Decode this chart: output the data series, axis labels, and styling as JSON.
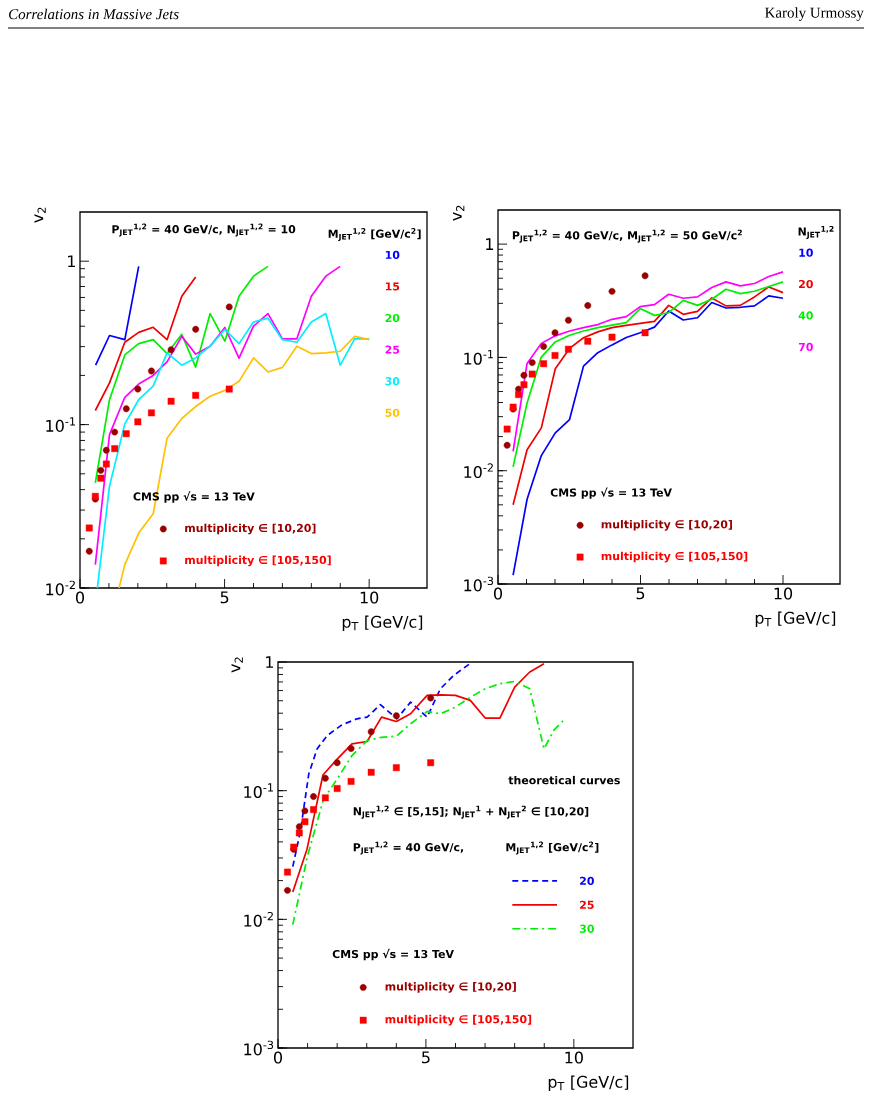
{
  "chart_data": [
    {
      "type": "line",
      "title": "P$_{JET}$$^{1,2}$ = 40 GeV/c, N$_{JET}$$^{1,2}$ = 10",
      "xlabel": "p$_{T}$ [GeV/c]",
      "ylabel": "v$_{2}$",
      "legend_title": "M$_{JET}$$^{1,2}$ [GeV/c$^{2}$]",
      "log": "y",
      "xlim": [
        0,
        12
      ],
      "ylim": [
        0.01,
        2
      ],
      "xticks": [
        0,
        5,
        10
      ],
      "yticks": [
        {
          "value": 0.01,
          "label": "10$^{-2}$"
        },
        {
          "value": 0.1,
          "label": "10$^{-1}$"
        },
        1
      ],
      "legend": "bottom left",
      "annotations": [
        "Correlations in Massive Jets",
        "Karoly Urmossy",
        "CMS pp √s = 13 TeV"
      ],
      "series": [
        {
          "name": "10",
          "color": "#0000ff",
          "x": [
            0.54,
            1.02,
            1.55,
            2.03
          ],
          "values": [
            0.231,
            0.351,
            0.331,
            0.93
          ]
        },
        {
          "name": "15",
          "color": "#f00000",
          "x": [
            0.53,
            1.02,
            1.55,
            2.03,
            2.53,
            3.01,
            3.52,
            4.0
          ],
          "values": [
            0.122,
            0.18,
            0.319,
            0.367,
            0.394,
            0.331,
            0.61,
            0.8
          ]
        },
        {
          "name": "20",
          "color": "#00ee00",
          "x": [
            0.53,
            1.02,
            1.55,
            2.03,
            2.53,
            3.01,
            3.52,
            4.0,
            4.5,
            5.01,
            5.5,
            6.0,
            6.5
          ],
          "values": [
            0.044,
            0.142,
            0.267,
            0.313,
            0.331,
            0.272,
            0.357,
            0.225,
            0.478,
            0.324,
            0.61,
            0.81,
            0.93
          ]
        },
        {
          "name": "25",
          "color": "#ff00ff",
          "x": [
            0.53,
            1.02,
            1.55,
            2.03,
            2.53,
            3.01,
            3.52,
            4.0,
            4.5,
            5.01,
            5.5,
            6.0,
            6.5,
            7.0,
            7.5,
            8.0,
            8.5,
            9.0
          ],
          "values": [
            0.0139,
            0.0868,
            0.147,
            0.177,
            0.2,
            0.242,
            0.347,
            0.27,
            0.302,
            0.393,
            0.255,
            0.4,
            0.478,
            0.335,
            0.335,
            0.61,
            0.81,
            0.93
          ]
        },
        {
          "name": "30",
          "color": "#00eeff",
          "x": [
            0.6,
            1.02,
            1.55,
            2.03,
            2.53,
            3.01,
            3.52,
            4.0,
            4.5,
            5.01,
            5.5,
            6.0,
            6.5,
            7.0,
            7.5,
            8.0,
            8.5,
            9.0,
            9.5,
            10.0
          ],
          "values": [
            0.01,
            0.042,
            0.101,
            0.142,
            0.172,
            0.275,
            0.231,
            0.256,
            0.302,
            0.382,
            0.313,
            0.424,
            0.448,
            0.331,
            0.319,
            0.424,
            0.478,
            0.231,
            0.335,
            0.335
          ]
        },
        {
          "name": "50",
          "color": "#ffc000",
          "x": [
            1.35,
            1.55,
            2.03,
            2.53,
            3.01,
            3.52,
            4.0,
            4.5,
            5.01,
            5.5,
            6.0,
            6.5,
            7.0,
            7.5,
            8.0,
            8.5,
            9.0,
            9.5,
            10.0
          ],
          "values": [
            0.01,
            0.0139,
            0.0217,
            0.0285,
            0.0824,
            0.109,
            0.129,
            0.149,
            0.162,
            0.184,
            0.256,
            0.21,
            0.224,
            0.302,
            0.272,
            0.275,
            0.281,
            0.347,
            0.331
          ]
        },
        {
          "name": "multiplicity ∈ [10,20]",
          "type": "scatter",
          "marker": "circle",
          "color": "#990000",
          "x": [
            0.32,
            0.53,
            0.72,
            0.91,
            1.2,
            1.6,
            2.0,
            2.47,
            3.15,
            4.0,
            5.16
          ],
          "values": [
            0.0168,
            0.035,
            0.0525,
            0.0697,
            0.09,
            0.125,
            0.165,
            0.213,
            0.287,
            0.383,
            0.525
          ]
        },
        {
          "name": "multiplicity ∈ [105,150]",
          "type": "scatter",
          "marker": "square",
          "color": "#ff0000",
          "x": [
            0.32,
            0.53,
            0.72,
            0.91,
            1.2,
            1.6,
            2.0,
            2.47,
            3.15,
            4.0,
            5.16
          ],
          "values": [
            0.0233,
            0.0364,
            0.047,
            0.0574,
            0.0713,
            0.088,
            0.104,
            0.118,
            0.139,
            0.151,
            0.165
          ]
        }
      ]
    },
    {
      "type": "line",
      "title": "P$_{JET}$$^{1,2}$ = 40 GeV/c, M$_{JET}$$^{1,2}$ = 50 GeV/c$^{2}$",
      "xlabel": "p$_{T}$ [GeV/c]",
      "ylabel": "v$_{2}$",
      "legend_title": "N$_{JET}$$^{1,2}$",
      "log": "y",
      "xlim": [
        0,
        12
      ],
      "ylim": [
        0.001,
        2
      ],
      "xticks": [
        0,
        5,
        10
      ],
      "yticks": [
        {
          "value": 0.001,
          "label": "10$^{-3}$"
        },
        {
          "value": 0.01,
          "label": "10$^{-2}$"
        },
        {
          "value": 0.1,
          "label": "10$^{-1}$"
        },
        1
      ],
      "legend": "bottom left",
      "annotations": [
        "CMS pp √s = 13 TeV"
      ],
      "series": [
        {
          "name": "10",
          "color": "#0000ff",
          "x": [
            0.53,
            1.02,
            1.52,
            2.01,
            2.51,
            3.0,
            3.5,
            4.0,
            4.5,
            4.99,
            5.49,
            5.99,
            6.5,
            7.0,
            7.5,
            8.0,
            8.5,
            9.0,
            9.5,
            10.0
          ],
          "values": [
            0.0012,
            0.0056,
            0.0136,
            0.0216,
            0.0283,
            0.0838,
            0.11,
            0.129,
            0.15,
            0.165,
            0.185,
            0.257,
            0.214,
            0.224,
            0.305,
            0.273,
            0.277,
            0.285,
            0.349,
            0.333
          ]
        },
        {
          "name": "20",
          "color": "#f00000",
          "x": [
            0.53,
            1.02,
            1.52,
            2.01,
            2.51,
            3.0,
            3.5,
            4.0,
            4.5,
            4.99,
            5.49,
            5.99,
            6.5,
            7.0,
            7.5,
            8.0,
            8.5,
            9.0,
            9.5,
            10.0
          ],
          "values": [
            0.005,
            0.0153,
            0.0239,
            0.0794,
            0.12,
            0.149,
            0.168,
            0.183,
            0.192,
            0.2,
            0.208,
            0.288,
            0.24,
            0.255,
            0.335,
            0.285,
            0.288,
            0.342,
            0.419,
            0.373
          ]
        },
        {
          "name": "40",
          "color": "#00ee00",
          "x": [
            0.53,
            1.02,
            1.52,
            2.01,
            2.51,
            3.0,
            3.5,
            4.0,
            4.5,
            4.99,
            5.49,
            5.99,
            6.5,
            7.0,
            7.5,
            8.0,
            8.5,
            9.0,
            9.5,
            10.0
          ],
          "values": [
            0.0108,
            0.0397,
            0.1007,
            0.137,
            0.157,
            0.171,
            0.183,
            0.193,
            0.203,
            0.27,
            0.235,
            0.248,
            0.319,
            0.288,
            0.326,
            0.4,
            0.366,
            0.384,
            0.422,
            0.464
          ]
        },
        {
          "name": "70",
          "color": "#ff00ff",
          "x": [
            0.53,
            1.02,
            1.52,
            2.01,
            2.51,
            3.0,
            3.5,
            4.0,
            4.5,
            4.99,
            5.49,
            5.99,
            6.5,
            7.0,
            7.5,
            8.0,
            8.5,
            9.0,
            9.5,
            10.0
          ],
          "values": [
            0.0148,
            0.0885,
            0.133,
            0.155,
            0.171,
            0.183,
            0.195,
            0.217,
            0.229,
            0.281,
            0.292,
            0.361,
            0.333,
            0.342,
            0.414,
            0.464,
            0.428,
            0.449,
            0.517,
            0.569
          ]
        },
        {
          "name": "multiplicity ∈ [10,20]",
          "type": "scatter",
          "marker": "circle",
          "color": "#990000",
          "x": [
            0.32,
            0.53,
            0.72,
            0.91,
            1.2,
            1.6,
            2.0,
            2.47,
            3.15,
            4.0,
            5.16
          ],
          "values": [
            0.0168,
            0.035,
            0.0525,
            0.0697,
            0.09,
            0.125,
            0.165,
            0.213,
            0.287,
            0.383,
            0.525
          ]
        },
        {
          "name": "multiplicity ∈ [105,150]",
          "type": "scatter",
          "marker": "square",
          "color": "#ff0000",
          "x": [
            0.32,
            0.53,
            0.72,
            0.91,
            1.2,
            1.6,
            2.0,
            2.47,
            3.15,
            4.0,
            5.16
          ],
          "values": [
            0.0233,
            0.0364,
            0.047,
            0.0574,
            0.0713,
            0.088,
            0.104,
            0.118,
            0.139,
            0.151,
            0.165
          ]
        }
      ]
    },
    {
      "type": "line",
      "xlabel": "p$_{T}$ [GeV/c]",
      "ylabel": "v$_{2}$",
      "legend_title": "M$_{JET}$$^{1,2}$ [GeV/c$^{2}$]",
      "log": "y",
      "xlim": [
        0,
        12
      ],
      "ylim": [
        0.001,
        1
      ],
      "xticks": [
        0,
        5,
        10
      ],
      "yticks": [
        {
          "value": 0.001,
          "label": "10$^{-3}$"
        },
        {
          "value": 0.01,
          "label": "10$^{-2}$"
        },
        {
          "value": 0.1,
          "label": "10$^{-1}$"
        },
        1
      ],
      "legend": "right",
      "annotations": [
        "theoretical curves",
        "N$_{JET}$$^{1,2}$ ∈ [5,15];   N$_{JET}$$^{1}$ + N$_{JET}$$^{2}$ ∈ [10,20]",
        "P$_{JET}$$^{1,2}$ = 40 GeV/c,",
        "CMS pp √s = 13 TeV"
      ],
      "series": [
        {
          "name": "20",
          "color": "#0000ff",
          "line_style": "dashed",
          "x": [
            0.5,
            0.76,
            1.04,
            1.32,
            1.66,
            2.16,
            2.67,
            3.01,
            3.46,
            4.02,
            4.48,
            5.04,
            5.49,
            5.94,
            6.48
          ],
          "values": [
            0.0257,
            0.0488,
            0.135,
            0.211,
            0.268,
            0.325,
            0.362,
            0.373,
            0.466,
            0.362,
            0.488,
            0.373,
            0.62,
            0.787,
            0.97
          ]
        },
        {
          "name": "25",
          "color": "#f00000",
          "line_style": "solid",
          "x": [
            0.5,
            0.98,
            1.52,
            2.0,
            2.5,
            3.01,
            3.5,
            4.0,
            4.48,
            5.04,
            5.49,
            6.0,
            6.5,
            7.01,
            7.5,
            8.0,
            8.51,
            8.99
          ],
          "values": [
            0.0163,
            0.0351,
            0.1325,
            0.176,
            0.231,
            0.241,
            0.373,
            0.345,
            0.396,
            0.55,
            0.556,
            0.55,
            0.503,
            0.366,
            0.366,
            0.638,
            0.836,
            0.97
          ]
        },
        {
          "name": "30",
          "color": "#00ee00",
          "line_style": "dashdotted",
          "x": [
            0.5,
            1.0,
            1.54,
            2.0,
            2.5,
            3.01,
            3.5,
            4.0,
            4.48,
            5.04,
            5.49,
            6.0,
            6.5,
            7.01,
            7.5,
            8.0,
            8.51,
            8.99,
            9.32,
            9.72
          ],
          "values": [
            0.0091,
            0.0312,
            0.0861,
            0.123,
            0.1875,
            0.245,
            0.26,
            0.265,
            0.331,
            0.413,
            0.396,
            0.446,
            0.533,
            0.62,
            0.678,
            0.707,
            0.62,
            0.211,
            0.294,
            0.366
          ]
        },
        {
          "name": "multiplicity ∈ [10,20]",
          "type": "scatter",
          "marker": "circle",
          "color": "#990000",
          "x": [
            0.32,
            0.53,
            0.72,
            0.91,
            1.2,
            1.6,
            2.0,
            2.47,
            3.15,
            4.0,
            5.16
          ],
          "values": [
            0.0168,
            0.035,
            0.0525,
            0.0697,
            0.09,
            0.125,
            0.165,
            0.213,
            0.287,
            0.383,
            0.525
          ]
        },
        {
          "name": "multiplicity ∈ [105,150]",
          "type": "scatter",
          "marker": "square",
          "color": "#ff0000",
          "x": [
            0.32,
            0.53,
            0.72,
            0.91,
            1.2,
            1.6,
            2.0,
            2.47,
            3.15,
            4.0,
            5.16
          ],
          "values": [
            0.0233,
            0.0364,
            0.047,
            0.0574,
            0.0713,
            0.088,
            0.104,
            0.118,
            0.139,
            0.151,
            0.165
          ]
        }
      ]
    }
  ]
}
